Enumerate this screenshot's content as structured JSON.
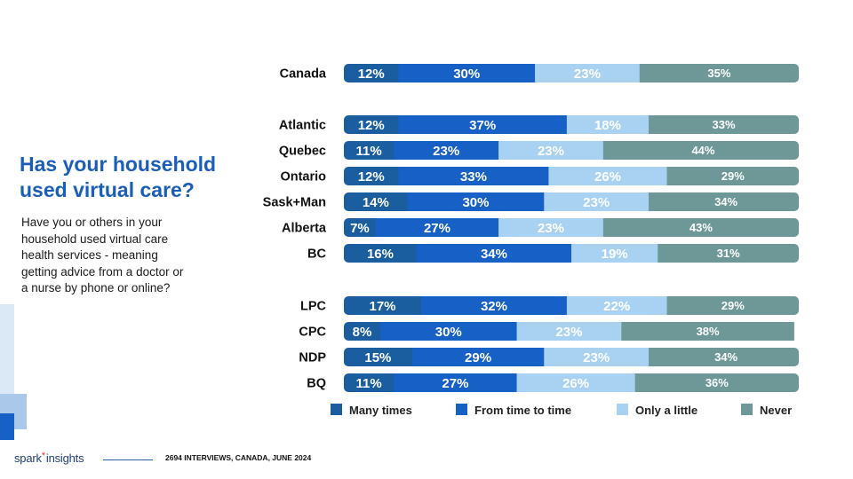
{
  "heading": {
    "title": "Has your household used virtual care?",
    "subtitle": "Have you or others in your household used virtual care health services - meaning getting advice from a doctor or a nurse by phone or online?"
  },
  "footer": {
    "logo_text": "spark",
    "logo_star": "*",
    "logo_text2": "insights",
    "note": "2694 INTERVIEWS, CANADA, JUNE 2024"
  },
  "colors": {
    "many_times": "#1b5ea0",
    "from_time_to_time": "#1760c5",
    "only_a_little": "#a9d1f2",
    "never": "#6e9797",
    "title": "#1a5eb8"
  },
  "chart_data": {
    "type": "bar",
    "orientation": "horizontal",
    "stacked": true,
    "percent_scale": true,
    "categories": [
      "Canada",
      "Atlantic",
      "Quebec",
      "Ontario",
      "Sask+Man",
      "Alberta",
      "BC",
      "LPC",
      "CPC",
      "NDP",
      "BQ"
    ],
    "series": [
      {
        "name": "Many times",
        "values": [
          12,
          12,
          11,
          12,
          14,
          7,
          16,
          17,
          8,
          15,
          11
        ]
      },
      {
        "name": "From time to time",
        "values": [
          30,
          37,
          23,
          33,
          30,
          27,
          34,
          32,
          30,
          29,
          27
        ]
      },
      {
        "name": "Only a little",
        "values": [
          23,
          18,
          23,
          26,
          23,
          23,
          19,
          22,
          23,
          23,
          26
        ]
      },
      {
        "name": "Never",
        "values": [
          35,
          33,
          44,
          29,
          34,
          43,
          31,
          29,
          38,
          34,
          36
        ]
      }
    ],
    "data_labels": [
      [
        "12%",
        "30%",
        "23%",
        "35%"
      ],
      [
        "12%",
        "37%",
        "18%",
        "33%"
      ],
      [
        "11%",
        "23%",
        "23%",
        "44%"
      ],
      [
        "12%",
        "33%",
        "26%",
        "29%"
      ],
      [
        "14%",
        "30%",
        "23%",
        "34%"
      ],
      [
        "7%",
        "27%",
        "23%",
        "43%"
      ],
      [
        "16%",
        "34%",
        "19%",
        "31%"
      ],
      [
        "17%",
        "32%",
        "22%",
        "29%"
      ],
      [
        "8%",
        "30%",
        "23%",
        "38%"
      ],
      [
        "15%",
        "29%",
        "23%",
        "34%"
      ],
      [
        "11%",
        "27%",
        "26%",
        "36%"
      ]
    ],
    "legend": [
      "Many times",
      "From time to time",
      "Only a little",
      "Never"
    ],
    "legend_position": "bottom",
    "grid": false,
    "xlim": [
      0,
      100
    ]
  }
}
